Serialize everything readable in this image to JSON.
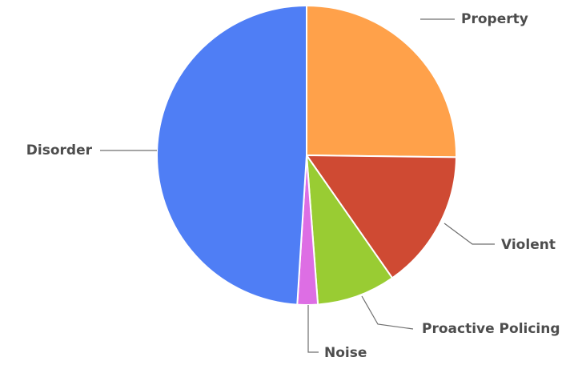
{
  "chart_data": {
    "type": "pie",
    "start_angle_deg": 0,
    "direction": "clockwise",
    "slices": [
      {
        "label": "Property",
        "value": 25.2,
        "color": "#ffa14a"
      },
      {
        "label": "Violent",
        "value": 15.1,
        "color": "#cf4a33"
      },
      {
        "label": "Proactive Policing",
        "value": 8.5,
        "color": "#99cc33"
      },
      {
        "label": "Noise",
        "value": 2.2,
        "color": "#dd6ee4"
      },
      {
        "label": "Disorder",
        "value": 49.0,
        "color": "#4f7ef5"
      }
    ]
  }
}
